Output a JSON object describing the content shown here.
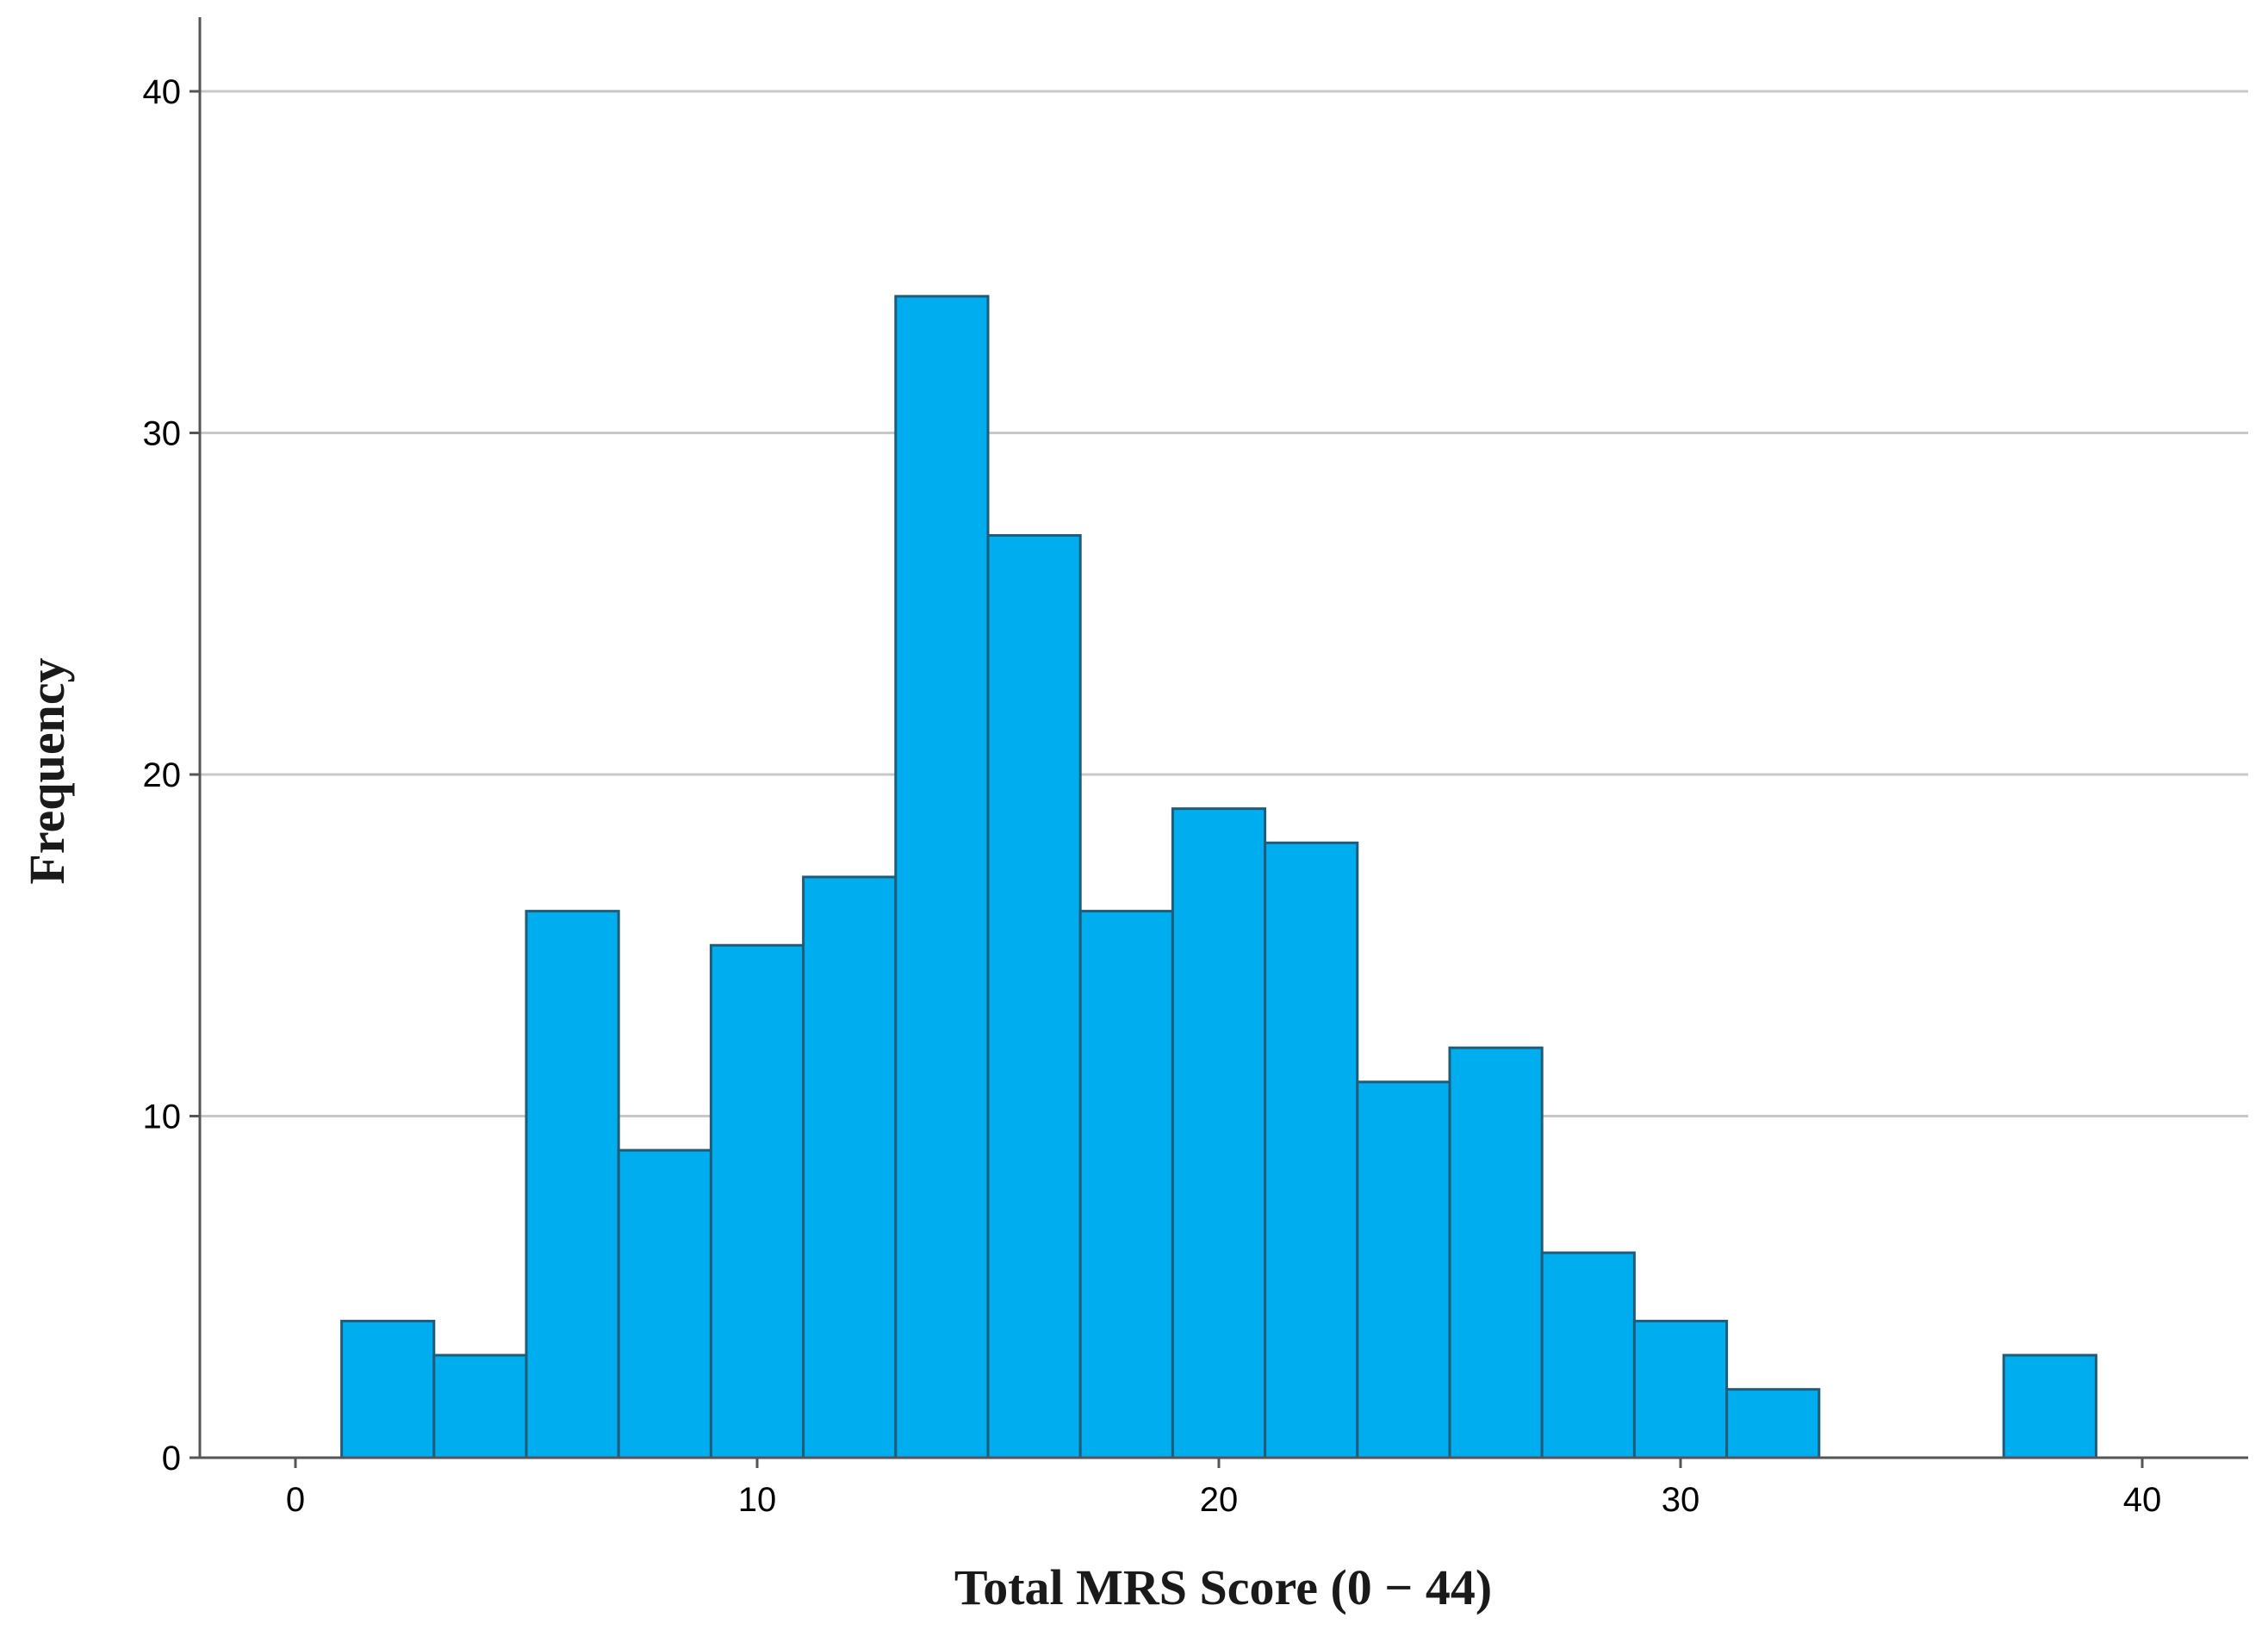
{
  "chart_data": {
    "type": "bar",
    "title": "",
    "xlabel": "Total MRS Score (0 − 44)",
    "ylabel": "Frequency",
    "bin_width": 2,
    "bins": [
      {
        "start": 1,
        "end": 3,
        "count": 4
      },
      {
        "start": 3,
        "end": 5,
        "count": 3
      },
      {
        "start": 5,
        "end": 7,
        "count": 16
      },
      {
        "start": 7,
        "end": 9,
        "count": 9
      },
      {
        "start": 9,
        "end": 11,
        "count": 15
      },
      {
        "start": 11,
        "end": 13,
        "count": 17
      },
      {
        "start": 13,
        "end": 15,
        "count": 34
      },
      {
        "start": 15,
        "end": 17,
        "count": 27
      },
      {
        "start": 17,
        "end": 19,
        "count": 16
      },
      {
        "start": 19,
        "end": 21,
        "count": 19
      },
      {
        "start": 21,
        "end": 23,
        "count": 18
      },
      {
        "start": 23,
        "end": 25,
        "count": 11
      },
      {
        "start": 25,
        "end": 27,
        "count": 12
      },
      {
        "start": 27,
        "end": 29,
        "count": 6
      },
      {
        "start": 29,
        "end": 31,
        "count": 4
      },
      {
        "start": 31,
        "end": 33,
        "count": 2
      },
      {
        "start": 37,
        "end": 39,
        "count": 3
      }
    ],
    "xlim": [
      -2,
      42
    ],
    "ylim": [
      0,
      42
    ],
    "xticks": [
      0,
      10,
      20,
      30,
      40
    ],
    "yticks": [
      0,
      10,
      20,
      30,
      40
    ],
    "grid": "horizontal",
    "legend": "none",
    "bar_color": "#00aeef"
  }
}
